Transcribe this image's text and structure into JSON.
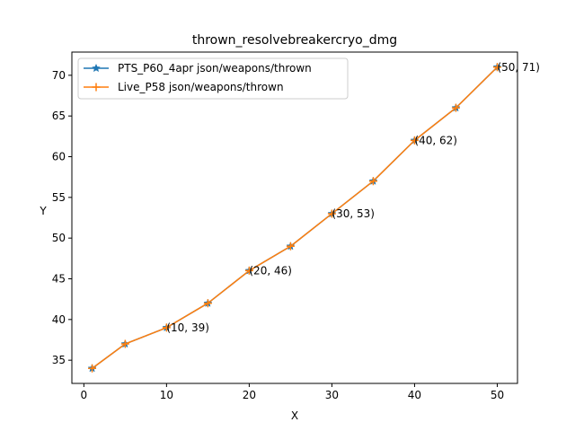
{
  "chart_data": {
    "type": "line",
    "title": "thrown_resolvebreakercryo_dmg",
    "xlabel": "X",
    "ylabel": "Y",
    "xlim": [
      -1.45,
      52.45
    ],
    "ylim": [
      32.15,
      72.85
    ],
    "xticks": [
      0,
      10,
      20,
      30,
      40,
      50
    ],
    "yticks": [
      35,
      40,
      45,
      50,
      55,
      60,
      65,
      70
    ],
    "legend_position": "upper-left",
    "grid": false,
    "x": [
      1,
      5,
      10,
      15,
      20,
      25,
      30,
      35,
      40,
      45,
      50
    ],
    "series": [
      {
        "name": "PTS_P60_4apr json/weapons/thrown",
        "values": [
          34,
          37,
          39,
          42,
          46,
          49,
          53,
          57,
          62,
          66,
          71
        ],
        "color": "#1f77b4",
        "marker": "star"
      },
      {
        "name": "Live_P58 json/weapons/thrown",
        "values": [
          34,
          37,
          39,
          42,
          46,
          49,
          53,
          57,
          62,
          66,
          71
        ],
        "color": "#ff7f0e",
        "marker": "plus"
      }
    ],
    "annotations": [
      {
        "x": 10,
        "y": 39,
        "text": "(10, 39)"
      },
      {
        "x": 20,
        "y": 46,
        "text": "(20, 46)"
      },
      {
        "x": 30,
        "y": 53,
        "text": "(30, 53)"
      },
      {
        "x": 40,
        "y": 62,
        "text": "(40, 62)"
      },
      {
        "x": 50,
        "y": 71,
        "text": "(50, 71)"
      }
    ]
  }
}
